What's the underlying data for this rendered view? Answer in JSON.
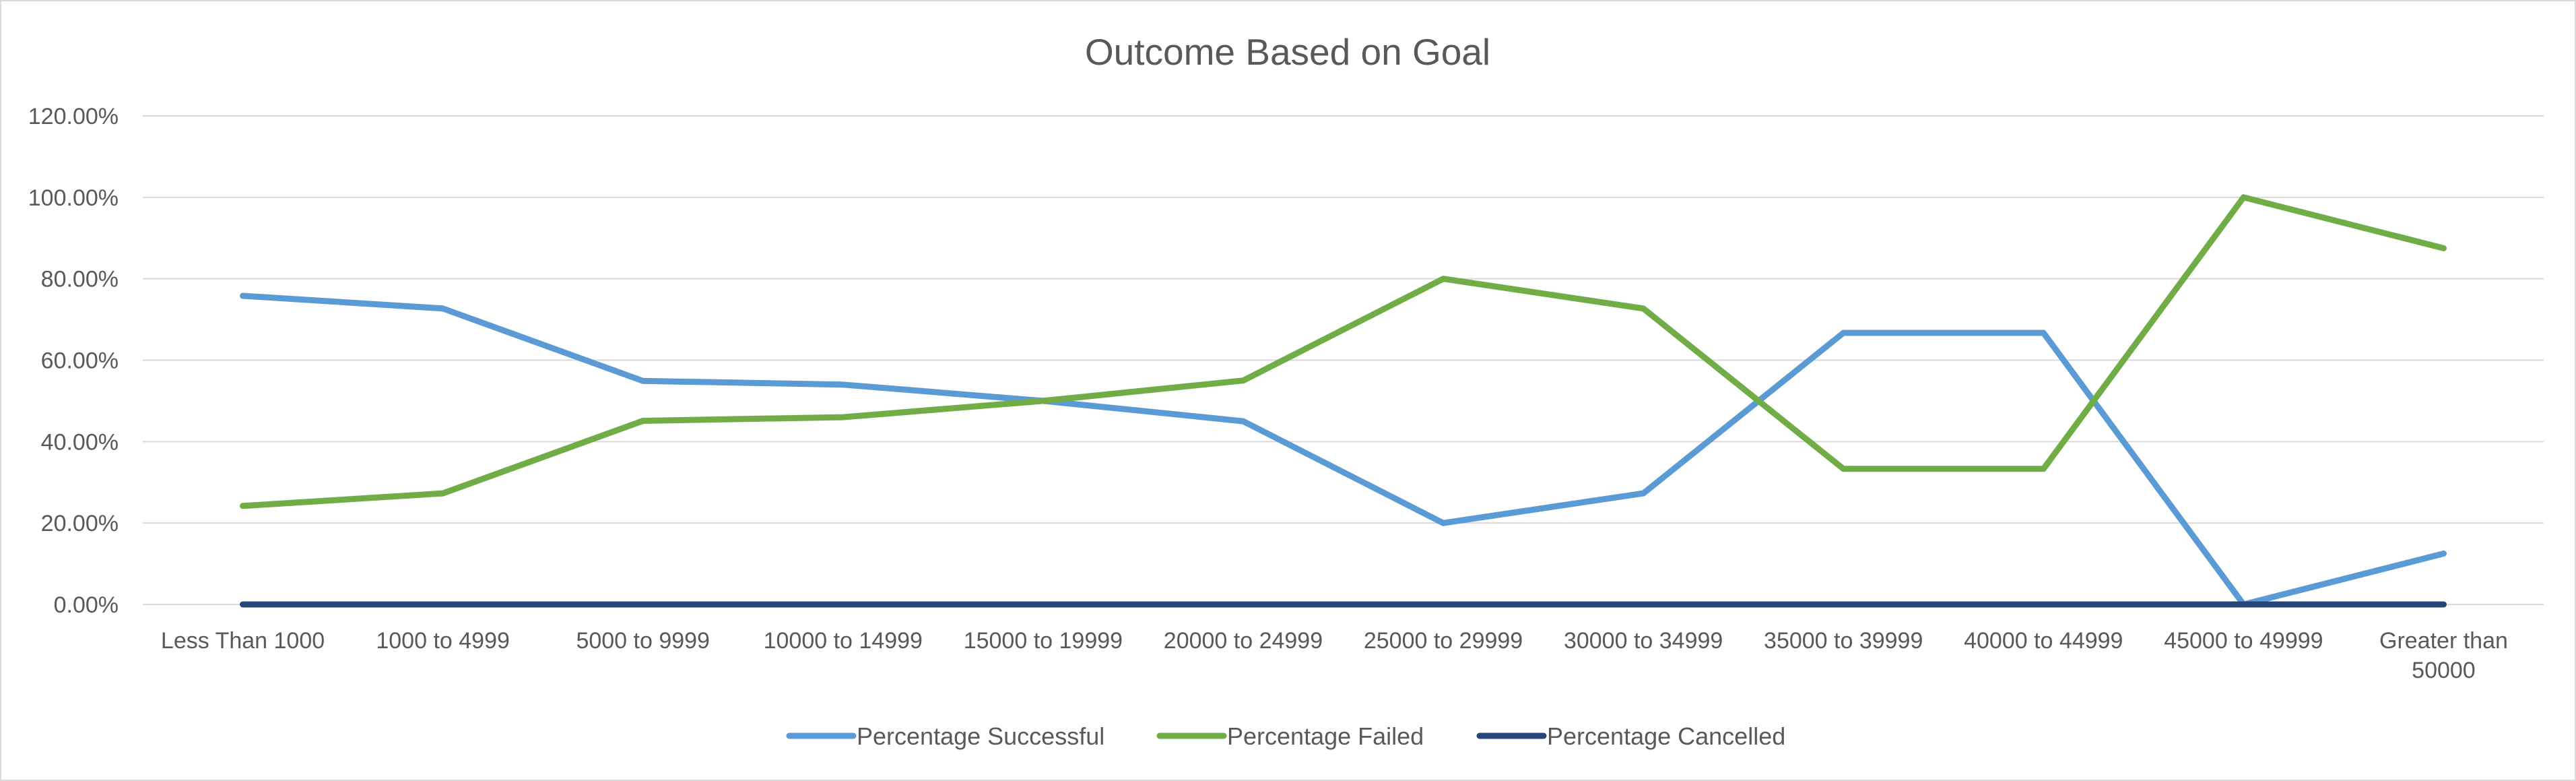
{
  "chart_data": {
    "type": "line",
    "title": "Outcome Based on Goal",
    "xlabel": "",
    "ylabel": "",
    "categories": [
      [
        "Less Than 1000"
      ],
      [
        "1000 to 4999"
      ],
      [
        "5000 to 9999"
      ],
      [
        "10000 to 14999"
      ],
      [
        "15000 to 19999"
      ],
      [
        "20000 to 24999"
      ],
      [
        "25000 to 29999"
      ],
      [
        "30000 to 34999"
      ],
      [
        "35000 to 39999"
      ],
      [
        "40000 to 44999"
      ],
      [
        "45000 to 49999"
      ],
      [
        "Greater than",
        "50000"
      ]
    ],
    "y_ticks": [
      "0.00%",
      "20.00%",
      "40.00%",
      "60.00%",
      "80.00%",
      "100.00%",
      "120.00%"
    ],
    "ylim": [
      0,
      120
    ],
    "y_unit": "%",
    "grid": true,
    "legend_position": "bottom",
    "series": [
      {
        "name": "Percentage Successful",
        "color": "#5b9bd5",
        "values": [
          75.8,
          72.7,
          54.9,
          54.0,
          50.0,
          45.0,
          20.0,
          27.3,
          66.7,
          66.7,
          0.0,
          12.5
        ]
      },
      {
        "name": "Percentage Failed",
        "color": "#70ad47",
        "values": [
          24.2,
          27.3,
          45.1,
          46.0,
          50.0,
          55.0,
          80.0,
          72.7,
          33.3,
          33.3,
          100.0,
          87.5
        ]
      },
      {
        "name": "Percentage Cancelled",
        "color": "#264478",
        "values": [
          0,
          0,
          0,
          0,
          0,
          0,
          0,
          0,
          0,
          0,
          0,
          0
        ]
      }
    ]
  }
}
